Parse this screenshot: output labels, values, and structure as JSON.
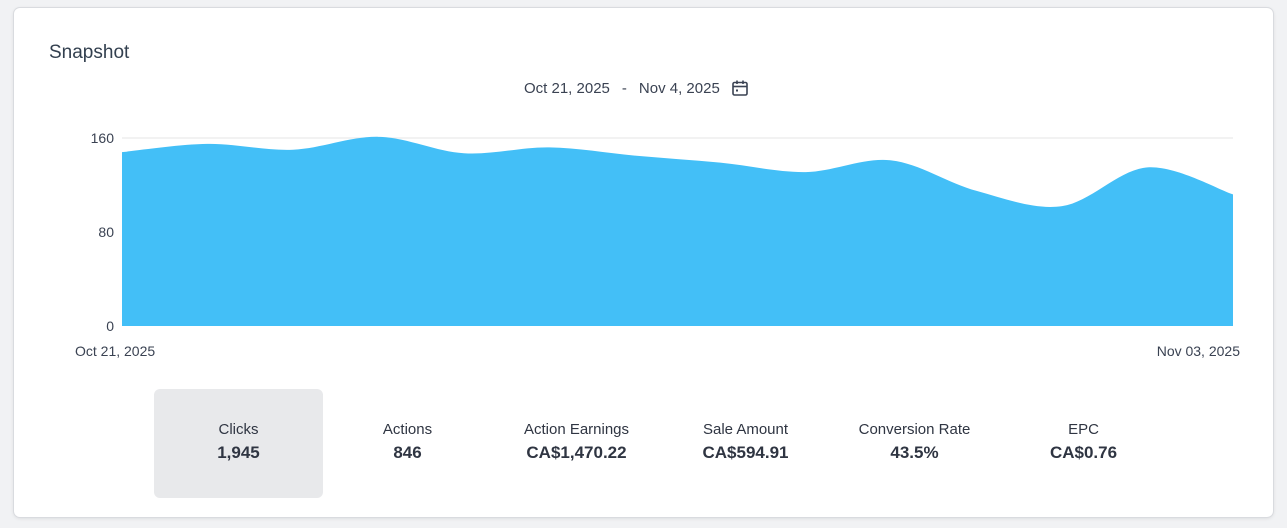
{
  "title": "Snapshot",
  "date_range": {
    "start": "Oct 21, 2025",
    "separator": "-",
    "end": "Nov 4, 2025"
  },
  "colors": {
    "area": "#43bff7",
    "grid": "#e6e6e6",
    "active_bg": "#e8e9eb"
  },
  "chart_data": {
    "type": "area",
    "title": "",
    "xlabel": "",
    "ylabel": "",
    "ylim": [
      0,
      160
    ],
    "yticks": [
      0,
      80,
      160
    ],
    "x_tick_labels": [
      "Oct 21, 2025",
      "Nov 03, 2025"
    ],
    "grid": true,
    "legend": "none",
    "series": [
      {
        "name": "Clicks",
        "values": [
          148,
          155,
          150,
          161,
          147,
          152,
          145,
          139,
          131,
          141,
          115,
          102,
          135,
          112
        ]
      }
    ]
  },
  "metrics": [
    {
      "label": "Clicks",
      "value": "1,945",
      "active": true
    },
    {
      "label": "Actions",
      "value": "846",
      "active": false
    },
    {
      "label": "Action Earnings",
      "value": "CA$1,470.22",
      "active": false
    },
    {
      "label": "Sale Amount",
      "value": "CA$594.91",
      "active": false
    },
    {
      "label": "Conversion Rate",
      "value": "43.5%",
      "active": false
    },
    {
      "label": "EPC",
      "value": "CA$0.76",
      "active": false
    }
  ]
}
